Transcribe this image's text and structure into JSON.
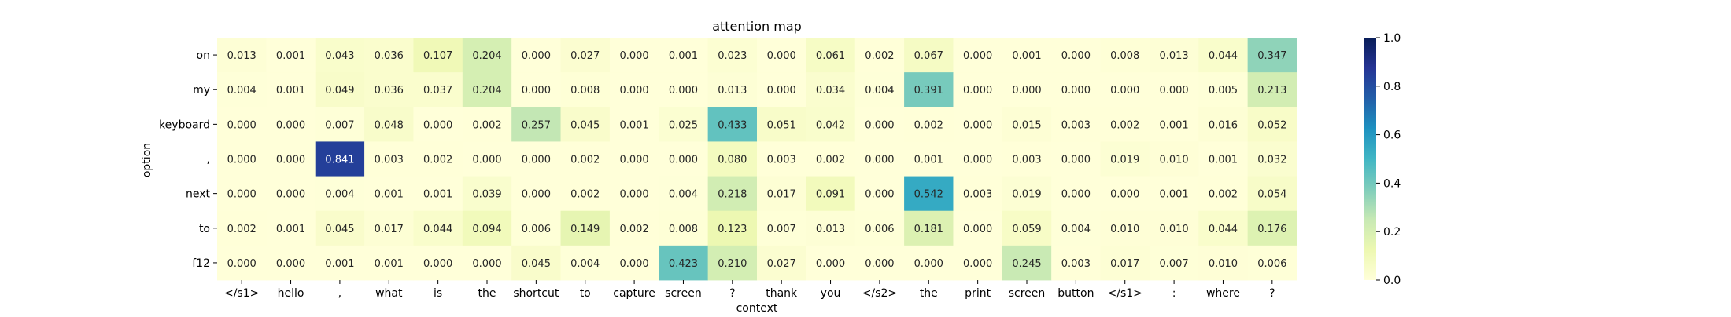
{
  "chart_data": {
    "type": "heatmap",
    "title": "attention map",
    "xlabel": "context",
    "ylabel": "option",
    "x_categories": [
      "</s1>",
      "hello",
      ",",
      "what",
      "is",
      "the",
      "shortcut",
      "to",
      "capture",
      "screen",
      "?",
      "thank",
      "you",
      "</s2>",
      "the",
      "print",
      "screen",
      "button",
      "</s1>",
      ":",
      "where",
      "?"
    ],
    "y_categories": [
      "on",
      "my",
      "keyboard",
      ",",
      "next",
      "to",
      "f12"
    ],
    "values": [
      [
        "0.013",
        "0.001",
        "0.043",
        "0.036",
        "0.107",
        "0.204",
        "0.000",
        "0.027",
        "0.000",
        "0.001",
        "0.023",
        "0.000",
        "0.061",
        "0.002",
        "0.067",
        "0.000",
        "0.001",
        "0.000",
        "0.008",
        "0.013",
        "0.044",
        "0.347"
      ],
      [
        "0.004",
        "0.001",
        "0.049",
        "0.036",
        "0.037",
        "0.204",
        "0.000",
        "0.008",
        "0.000",
        "0.000",
        "0.013",
        "0.000",
        "0.034",
        "0.004",
        "0.391",
        "0.000",
        "0.000",
        "0.000",
        "0.000",
        "0.000",
        "0.005",
        "0.213"
      ],
      [
        "0.000",
        "0.000",
        "0.007",
        "0.048",
        "0.000",
        "0.002",
        "0.257",
        "0.045",
        "0.001",
        "0.025",
        "0.433",
        "0.051",
        "0.042",
        "0.000",
        "0.002",
        "0.000",
        "0.015",
        "0.003",
        "0.002",
        "0.001",
        "0.016",
        "0.052"
      ],
      [
        "0.000",
        "0.000",
        "0.841",
        "0.003",
        "0.002",
        "0.000",
        "0.000",
        "0.002",
        "0.000",
        "0.000",
        "0.080",
        "0.003",
        "0.002",
        "0.000",
        "0.001",
        "0.000",
        "0.003",
        "0.000",
        "0.019",
        "0.010",
        "0.001",
        "0.032"
      ],
      [
        "0.000",
        "0.000",
        "0.004",
        "0.001",
        "0.001",
        "0.039",
        "0.000",
        "0.002",
        "0.000",
        "0.004",
        "0.218",
        "0.017",
        "0.091",
        "0.000",
        "0.542",
        "0.003",
        "0.019",
        "0.000",
        "0.000",
        "0.001",
        "0.002",
        "0.054"
      ],
      [
        "0.002",
        "0.001",
        "0.045",
        "0.017",
        "0.044",
        "0.094",
        "0.006",
        "0.149",
        "0.002",
        "0.008",
        "0.123",
        "0.007",
        "0.013",
        "0.006",
        "0.181",
        "0.000",
        "0.059",
        "0.004",
        "0.010",
        "0.010",
        "0.044",
        "0.176"
      ],
      [
        "0.000",
        "0.000",
        "0.001",
        "0.001",
        "0.000",
        "0.000",
        "0.045",
        "0.004",
        "0.000",
        "0.423",
        "0.210",
        "0.027",
        "0.000",
        "0.000",
        "0.000",
        "0.000",
        "0.245",
        "0.003",
        "0.017",
        "0.007",
        "0.010",
        "0.006"
      ]
    ],
    "colorbar": {
      "range": [
        0,
        1.0
      ],
      "ticks": [
        "0.0",
        "0.2",
        "0.4",
        "0.6",
        "0.8",
        "1.0"
      ],
      "colormap": "YlGnBu"
    },
    "grid": false
  }
}
